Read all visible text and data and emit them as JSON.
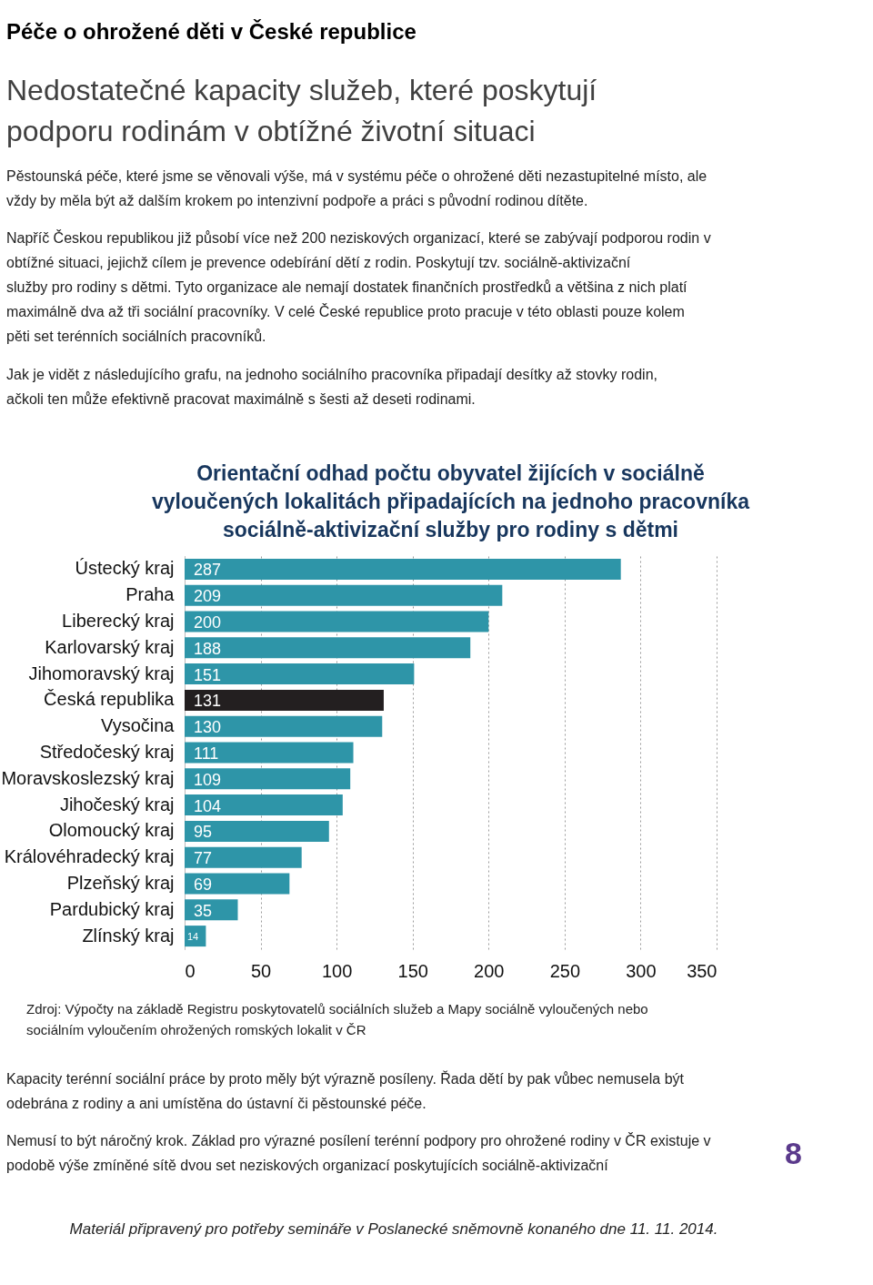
{
  "chart_data": {
    "type": "bar",
    "orientation": "horizontal",
    "title": "Orientační odhad počtu obyvatel žijících v sociálně vyloučených lokalitách připadajících na jednoho pracovníka sociálně-aktivizační služby pro rodiny s dětmi",
    "categories": [
      "Ústecký kraj",
      "Praha",
      "Liberecký kraj",
      "Karlovarský kraj",
      "Jihomoravský kraj",
      "Česká republika",
      "Vysočina",
      "Středočeský kraj",
      "Moravskoslezský kraj",
      "Jihočeský kraj",
      "Olomoucký kraj",
      "Královéhradecký kraj",
      "Plzeňský kraj",
      "Pardubický kraj",
      "Zlínský kraj"
    ],
    "values": [
      287,
      209,
      200,
      188,
      151,
      131,
      130,
      111,
      109,
      104,
      95,
      77,
      69,
      35,
      14
    ],
    "colors": [
      "#2e95a8",
      "#2e95a8",
      "#2e95a8",
      "#2e95a8",
      "#2e95a8",
      "#231f20",
      "#2e95a8",
      "#2e95a8",
      "#2e95a8",
      "#2e95a8",
      "#2e95a8",
      "#2e95a8",
      "#2e95a8",
      "#2e95a8",
      "#2e95a8"
    ],
    "xlim": [
      0,
      350
    ],
    "xticks": [
      0,
      50,
      100,
      150,
      200,
      250,
      300,
      350
    ],
    "grid": "x",
    "data_labels": true,
    "annotations": [
      "Péče o ohrožené děti v České republice",
      "Nedostatečné kapacity služeb, které poskytují podporu rodinám v obtížné životní situaci",
      "Pěstounská péče, které jsme se věnovali výše, má v systému péče o ohrožené děti nezastupitelné místo, ale vždy by měla být až dalším krokem po intenzivní podpoře a práci s původní rodinou dítěte.",
      "Napříč Českou republikou již působí více než 200 neziskových organizací, které se zabývají podporou rodin v obtížné situaci, jejichž cílem je prevence odebírání dětí z rodin. Poskytují tzv. sociálně-aktivizační služby pro rodiny s dětmi. Tyto organizace ale nemají dostatek finančních prostředků a většina z nich platí maximálně dva až tři sociální pracovníky. V celé České republice proto pracuje v této oblasti pouze kolem pěti set terénních sociálních pracovníků.",
      "Jak je vidět z následujícího grafu, na jednoho sociálního pracovníka připadají desítky až stovky rodin, ačkoli ten může efektivně pracovat maximálně s šesti až deseti rodinami.",
      "Zdroj: Výpočty na základě Registru poskytovatelů sociálních služeb a Mapy sociálně vyloučených nebo sociálním vyloučením ohrožených romských lokalit v ČR",
      "Kapacity terénní sociální práce by proto měly být výrazně posíleny. Řada dětí by pak vůbec nemusela být odebrána z rodiny a ani umístěna do ústavní či pěstounské péče.",
      "Nemusí to být náročný krok. Základ pro výrazné posílení terénní podpory pro ohrožené rodiny v ČR existuje v podobě výše zmíněné sítě dvou set neziskových organizací poskytujících sociálně-aktivizační",
      "8",
      "Materiál připravený pro potřeby semináře v Poslanecké sněmovně konaného dne 11. 11. 2014."
    ]
  }
}
